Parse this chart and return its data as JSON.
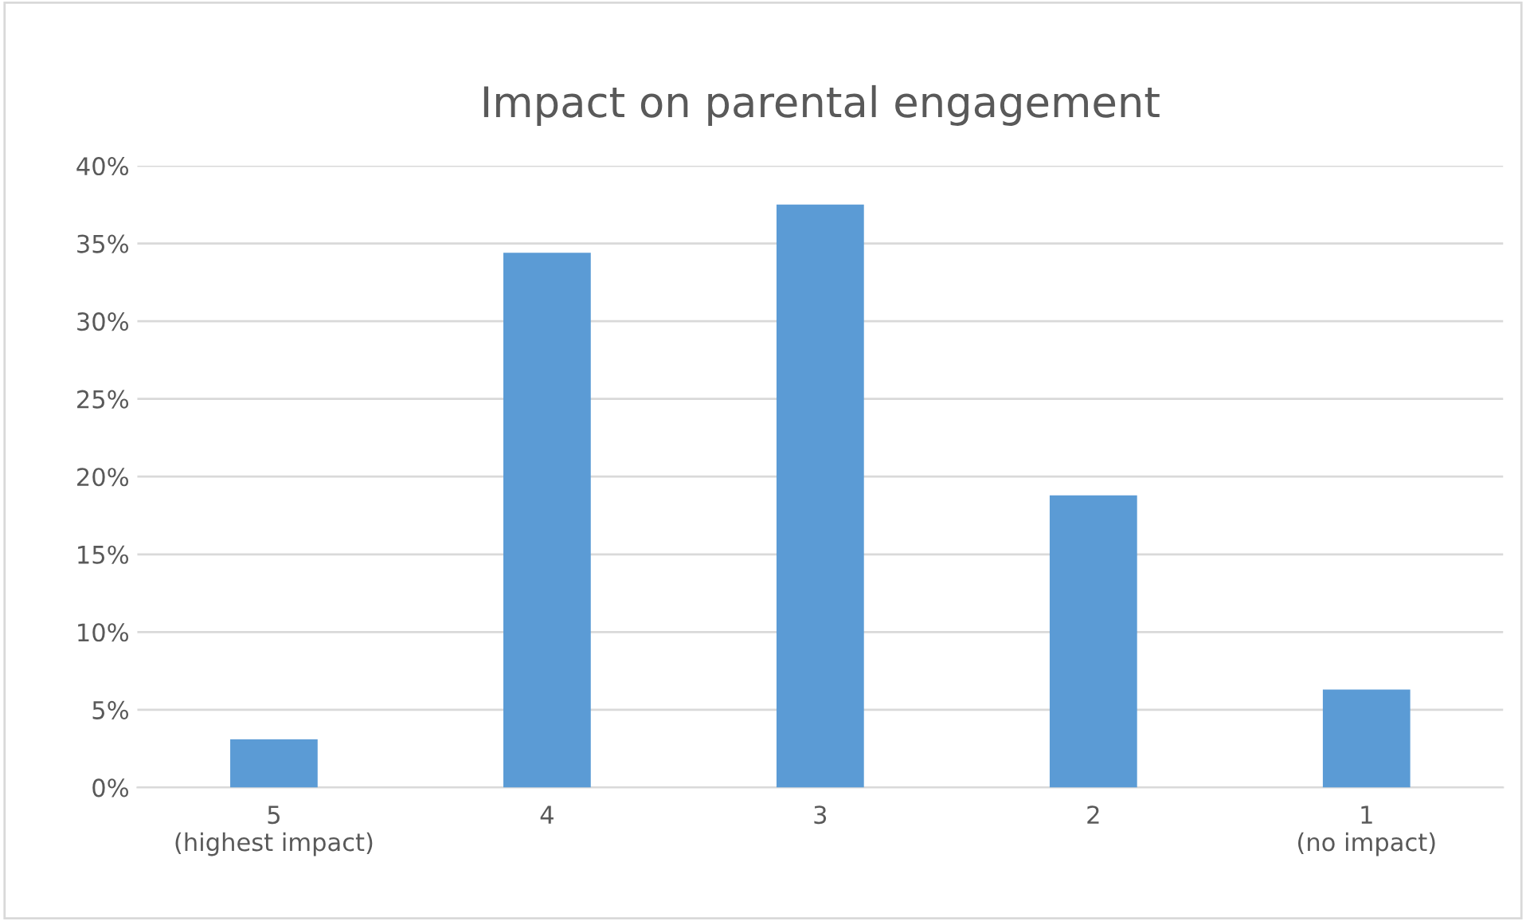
{
  "chart_data": {
    "type": "bar",
    "title": "Impact on parental engagement",
    "categories": [
      "5\n(highest impact)",
      "4",
      "3",
      "2",
      "1\n(no impact)"
    ],
    "values": [
      3.1,
      34.4,
      37.5,
      18.8,
      6.3
    ],
    "color": "#5b9bd5",
    "ylim": [
      0,
      40
    ],
    "yticks": [
      {
        "value": 0,
        "label": "0%"
      },
      {
        "value": 5,
        "label": "5%"
      },
      {
        "value": 10,
        "label": "10%"
      },
      {
        "value": 15,
        "label": "15%"
      },
      {
        "value": 20,
        "label": "20%"
      },
      {
        "value": 25,
        "label": "25%"
      },
      {
        "value": 30,
        "label": "30%"
      },
      {
        "value": 35,
        "label": "35%"
      },
      {
        "value": 40,
        "label": "40%"
      }
    ],
    "grid": "y"
  }
}
